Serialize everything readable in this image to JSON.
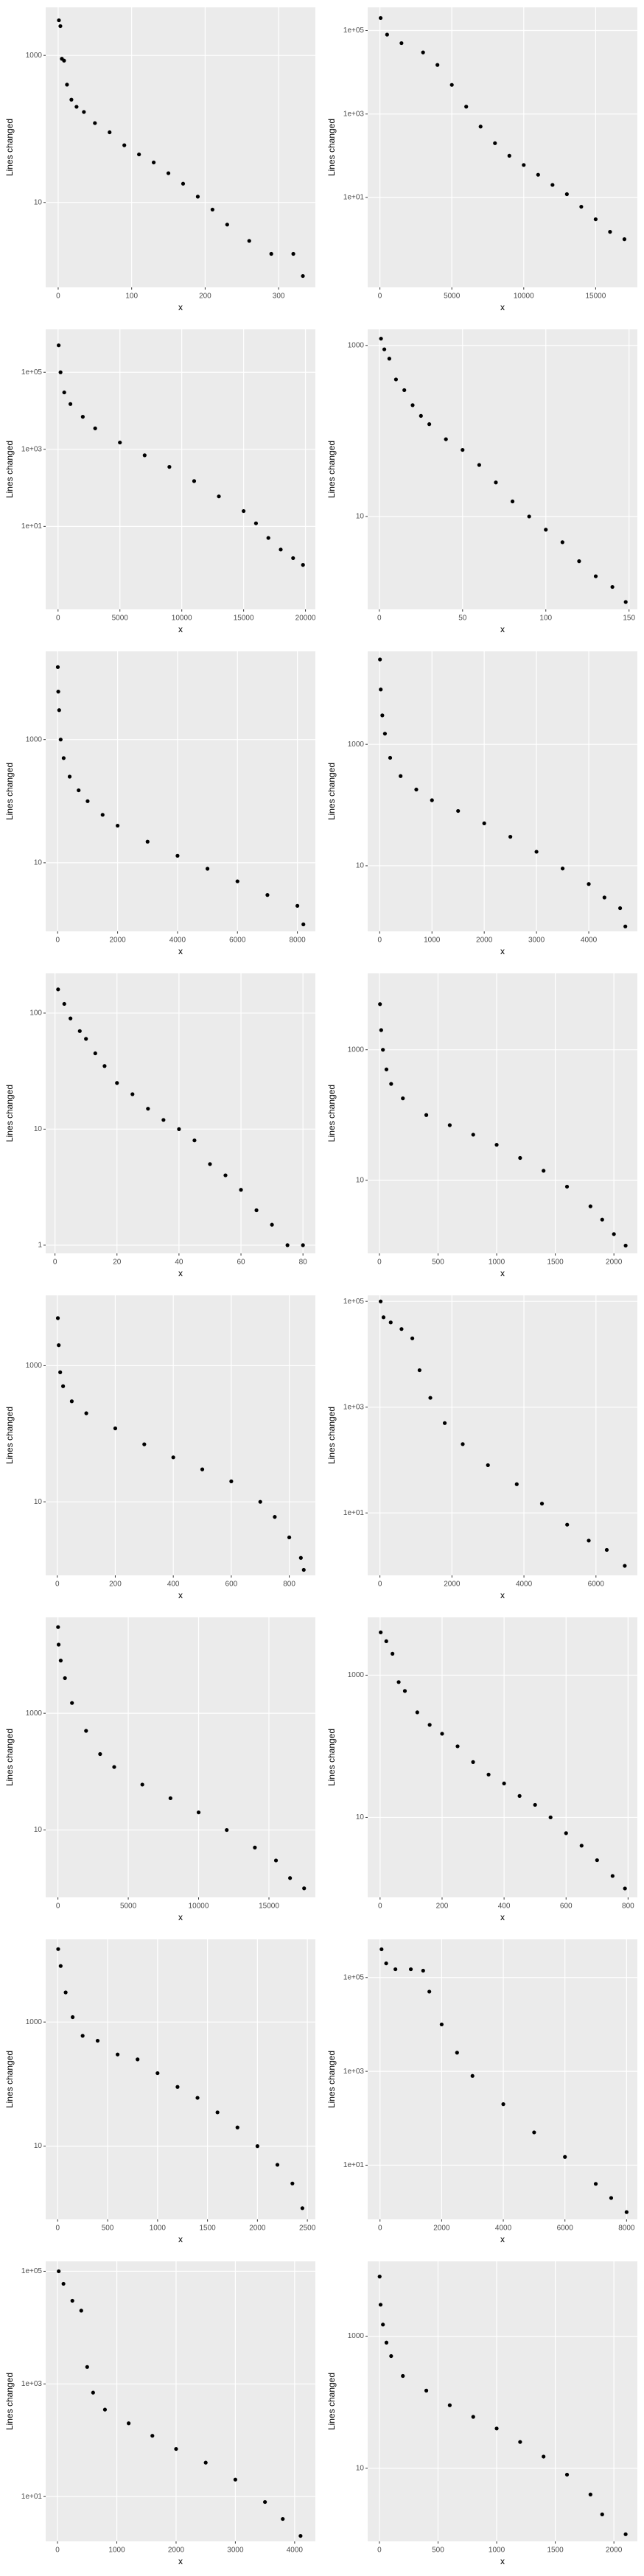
{
  "chart_data": [
    {
      "type": "scatter",
      "xlabel": "x",
      "ylabel": "Lines changed",
      "log_y": true,
      "grid": true,
      "color": "#000000",
      "xlim": [
        -17,
        350
      ],
      "ylim": [
        0.7,
        4500
      ],
      "xticks": [
        0,
        100,
        200,
        300
      ],
      "yticks": [
        10,
        1000
      ],
      "x": [
        1,
        3,
        5,
        8,
        12,
        18,
        25,
        35,
        50,
        70,
        90,
        110,
        130,
        150,
        170,
        190,
        210,
        230,
        260,
        290,
        320,
        333
      ],
      "y": [
        3000,
        2500,
        900,
        850,
        400,
        250,
        200,
        170,
        120,
        90,
        60,
        45,
        35,
        25,
        18,
        12,
        8,
        5,
        3,
        2,
        2,
        1
      ]
    },
    {
      "type": "scatter",
      "xlabel": "x",
      "ylabel": "Lines changed",
      "log_y": true,
      "grid": true,
      "color": "#000000",
      "xlim": [
        -850,
        17900
      ],
      "ylim": [
        0.07,
        360000
      ],
      "xticks": [
        0,
        5000,
        10000,
        15000
      ],
      "yticks": [
        {
          "value": 10,
          "label": "1e+01"
        },
        {
          "value": 1000,
          "label": "1e+03"
        },
        {
          "value": 100000,
          "label": "1e+05"
        }
      ],
      "x": [
        50,
        500,
        1500,
        3000,
        4000,
        5000,
        6000,
        7000,
        8000,
        9000,
        10000,
        11000,
        12000,
        13000,
        14000,
        15000,
        16000,
        17000
      ],
      "y": [
        200000,
        80000,
        50000,
        30000,
        15000,
        5000,
        1500,
        500,
        200,
        100,
        60,
        35,
        20,
        12,
        6,
        3,
        1.5,
        1
      ]
    },
    {
      "type": "scatter",
      "xlabel": "x",
      "ylabel": "Lines changed",
      "log_y": true,
      "grid": true,
      "color": "#000000",
      "xlim": [
        -1000,
        20800
      ],
      "ylim": [
        0.07,
        1300000
      ],
      "xticks": [
        0,
        5000,
        10000,
        15000,
        20000
      ],
      "yticks": [
        {
          "value": 10,
          "label": "1e+01"
        },
        {
          "value": 1000,
          "label": "1e+03"
        },
        {
          "value": 100000,
          "label": "1e+05"
        }
      ],
      "x": [
        50,
        200,
        500,
        1000,
        2000,
        3000,
        5000,
        7000,
        9000,
        11000,
        13000,
        15000,
        16000,
        17000,
        18000,
        19000,
        19800
      ],
      "y": [
        500000,
        100000,
        30000,
        15000,
        7000,
        3500,
        1500,
        700,
        350,
        150,
        60,
        25,
        12,
        5,
        2.5,
        1.5,
        1
      ]
    },
    {
      "type": "scatter",
      "xlabel": "x",
      "ylabel": "Lines changed",
      "log_y": true,
      "grid": true,
      "color": "#000000",
      "xlim": [
        -7,
        155
      ],
      "ylim": [
        0.82,
        1540
      ],
      "xticks": [
        0,
        50,
        100,
        150
      ],
      "yticks": [
        10,
        1000
      ],
      "x": [
        1,
        3,
        6,
        10,
        15,
        20,
        25,
        30,
        40,
        50,
        60,
        70,
        80,
        90,
        100,
        110,
        120,
        130,
        140,
        148
      ],
      "y": [
        1200,
        900,
        700,
        400,
        300,
        200,
        150,
        120,
        80,
        60,
        40,
        25,
        15,
        10,
        7,
        5,
        3,
        2,
        1.5,
        1
      ]
    },
    {
      "type": "scatter",
      "xlabel": "x",
      "ylabel": "Lines changed",
      "log_y": true,
      "grid": true,
      "color": "#000000",
      "xlim": [
        -400,
        8600
      ],
      "ylim": [
        0.77,
        27000
      ],
      "xticks": [
        0,
        2000,
        4000,
        6000,
        8000
      ],
      "yticks": [
        10,
        1000
      ],
      "x": [
        5,
        20,
        50,
        100,
        200,
        400,
        700,
        1000,
        1500,
        2000,
        3000,
        4000,
        5000,
        6000,
        7000,
        8000,
        8200
      ],
      "y": [
        15000,
        6000,
        3000,
        1000,
        500,
        250,
        150,
        100,
        60,
        40,
        22,
        13,
        8,
        5,
        3,
        2,
        1
      ]
    },
    {
      "type": "scatter",
      "xlabel": "x",
      "ylabel": "Lines changed",
      "log_y": true,
      "grid": true,
      "color": "#000000",
      "xlim": [
        -230,
        4930
      ],
      "ylim": [
        0.83,
        34000
      ],
      "xticks": [
        0,
        1000,
        2000,
        3000,
        4000
      ],
      "yticks": [
        10,
        1000
      ],
      "x": [
        5,
        20,
        50,
        100,
        200,
        400,
        700,
        1000,
        1500,
        2000,
        2500,
        3000,
        3500,
        4000,
        4300,
        4600,
        4700
      ],
      "y": [
        25000,
        8000,
        3000,
        1500,
        600,
        300,
        180,
        120,
        80,
        50,
        30,
        17,
        9,
        5,
        3,
        2,
        1
      ]
    },
    {
      "type": "scatter",
      "xlabel": "x",
      "ylabel": "Lines changed",
      "log_y": true,
      "grid": true,
      "color": "#000000",
      "xlim": [
        -3,
        84
      ],
      "ylim": [
        0.85,
        220
      ],
      "xticks": [
        0,
        20,
        40,
        60,
        80
      ],
      "yticks": [
        1,
        10,
        100
      ],
      "x": [
        1,
        3,
        5,
        8,
        10,
        13,
        16,
        20,
        25,
        30,
        35,
        40,
        45,
        50,
        55,
        60,
        65,
        70,
        75,
        80
      ],
      "y": [
        160,
        120,
        90,
        70,
        60,
        45,
        35,
        25,
        20,
        15,
        12,
        10,
        8,
        5,
        4,
        3,
        2,
        1.5,
        1,
        1
      ]
    },
    {
      "type": "scatter",
      "xlabel": "x",
      "ylabel": "Lines changed",
      "log_y": true,
      "grid": true,
      "color": "#000000",
      "xlim": [
        -100,
        2200
      ],
      "ylim": [
        0.76,
        14800
      ],
      "xticks": [
        0,
        500,
        1000,
        1500,
        2000
      ],
      "yticks": [
        10,
        1000
      ],
      "x": [
        5,
        15,
        30,
        60,
        100,
        200,
        400,
        600,
        800,
        1000,
        1200,
        1400,
        1600,
        1800,
        1900,
        2000,
        2100
      ],
      "y": [
        5000,
        2000,
        1000,
        500,
        300,
        180,
        100,
        70,
        50,
        35,
        22,
        14,
        8,
        4,
        2.5,
        1.5,
        1
      ]
    },
    {
      "type": "scatter",
      "xlabel": "x",
      "ylabel": "Lines changed",
      "log_y": true,
      "grid": true,
      "color": "#000000",
      "xlim": [
        -40,
        890
      ],
      "ylim": [
        0.83,
        10800
      ],
      "xticks": [
        0,
        200,
        400,
        600,
        800
      ],
      "yticks": [
        10,
        1000
      ],
      "x": [
        2,
        5,
        10,
        20,
        50,
        100,
        200,
        300,
        400,
        500,
        600,
        700,
        750,
        800,
        840,
        850
      ],
      "y": [
        5000,
        2000,
        800,
        500,
        300,
        200,
        120,
        70,
        45,
        30,
        20,
        10,
        6,
        3,
        1.5,
        1
      ]
    },
    {
      "type": "scatter",
      "xlabel": "x",
      "ylabel": "Lines changed",
      "log_y": true,
      "grid": true,
      "color": "#000000",
      "xlim": [
        -340,
        7150
      ],
      "ylim": [
        0.66,
        130000
      ],
      "xticks": [
        0,
        2000,
        4000,
        6000
      ],
      "yticks": [
        {
          "value": 10,
          "label": "1e+01"
        },
        {
          "value": 1000,
          "label": "1e+03"
        },
        {
          "value": 100000,
          "label": "1e+05"
        }
      ],
      "x": [
        20,
        100,
        300,
        600,
        900,
        1100,
        1400,
        1800,
        2300,
        3000,
        3800,
        4500,
        5200,
        5800,
        6300,
        6800
      ],
      "y": [
        100000,
        50000,
        40000,
        30000,
        20000,
        5000,
        1500,
        500,
        200,
        80,
        35,
        15,
        6,
        3,
        2,
        1
      ]
    },
    {
      "type": "scatter",
      "xlabel": "x",
      "ylabel": "Lines changed",
      "log_y": true,
      "grid": true,
      "color": "#000000",
      "xlim": [
        -870,
        18300
      ],
      "ylim": [
        0.7,
        44000
      ],
      "xticks": [
        0,
        5000,
        10000,
        15000
      ],
      "yticks": [
        10,
        1000
      ],
      "x": [
        10,
        50,
        200,
        500,
        1000,
        2000,
        3000,
        4000,
        6000,
        8000,
        10000,
        12000,
        14000,
        15500,
        16500,
        17500
      ],
      "y": [
        30000,
        15000,
        8000,
        4000,
        1500,
        500,
        200,
        120,
        60,
        35,
        20,
        10,
        5,
        3,
        1.5,
        1
      ]
    },
    {
      "type": "scatter",
      "xlabel": "x",
      "ylabel": "Lines changed",
      "log_y": true,
      "grid": true,
      "color": "#000000",
      "xlim": [
        -40,
        830
      ],
      "ylim": [
        0.75,
        6500
      ],
      "xticks": [
        0,
        200,
        400,
        600,
        800
      ],
      "yticks": [
        10,
        1000
      ],
      "x": [
        2,
        20,
        40,
        60,
        80,
        120,
        160,
        200,
        250,
        300,
        350,
        400,
        450,
        500,
        550,
        600,
        650,
        700,
        750,
        790
      ],
      "y": [
        4000,
        3000,
        2000,
        800,
        600,
        300,
        200,
        150,
        100,
        60,
        40,
        30,
        20,
        15,
        10,
        6,
        4,
        2.5,
        1.5,
        1
      ]
    },
    {
      "type": "scatter",
      "xlabel": "x",
      "ylabel": "Lines changed",
      "log_y": true,
      "grid": true,
      "color": "#000000",
      "xlim": [
        -120,
        2580
      ],
      "ylim": [
        0.66,
        21500
      ],
      "xticks": [
        0,
        500,
        1000,
        1500,
        2000,
        2500
      ],
      "yticks": [
        10,
        1000
      ],
      "x": [
        5,
        30,
        80,
        150,
        250,
        400,
        600,
        800,
        1000,
        1200,
        1400,
        1600,
        1800,
        2000,
        2200,
        2350,
        2450
      ],
      "y": [
        15000,
        8000,
        3000,
        1200,
        600,
        500,
        300,
        250,
        150,
        90,
        60,
        35,
        20,
        10,
        5,
        2.5,
        1
      ]
    },
    {
      "type": "scatter",
      "xlabel": "x",
      "ylabel": "Lines changed",
      "log_y": true,
      "grid": true,
      "color": "#000000",
      "xlim": [
        -400,
        8350
      ],
      "ylim": [
        0.7,
        650000
      ],
      "xticks": [
        0,
        2000,
        4000,
        6000,
        8000
      ],
      "yticks": [
        {
          "value": 10,
          "label": "1e+01"
        },
        {
          "value": 1000,
          "label": "1e+03"
        },
        {
          "value": 100000,
          "label": "1e+05"
        }
      ],
      "x": [
        50,
        200,
        500,
        1000,
        1400,
        1600,
        2000,
        2500,
        3000,
        4000,
        5000,
        6000,
        7000,
        7500,
        8000
      ],
      "y": [
        400000,
        200000,
        150000,
        150000,
        140000,
        50000,
        10000,
        2500,
        800,
        200,
        50,
        15,
        4,
        2,
        1
      ]
    },
    {
      "type": "scatter",
      "xlabel": "x",
      "ylabel": "Lines changed",
      "log_y": true,
      "grid": true,
      "color": "#000000",
      "xlim": [
        -200,
        4350
      ],
      "ylim": [
        1.6,
        150000
      ],
      "xticks": [
        0,
        1000,
        2000,
        3000,
        4000
      ],
      "yticks": [
        {
          "value": 10,
          "label": "1e+01"
        },
        {
          "value": 1000,
          "label": "1e+03"
        },
        {
          "value": 100000,
          "label": "1e+05"
        }
      ],
      "x": [
        20,
        100,
        250,
        400,
        500,
        600,
        800,
        1200,
        1600,
        2000,
        2500,
        3000,
        3500,
        3800,
        4100
      ],
      "y": [
        100000,
        60000,
        30000,
        20000,
        2000,
        700,
        350,
        200,
        120,
        70,
        40,
        20,
        8,
        4,
        2
      ]
    },
    {
      "type": "scatter",
      "xlabel": "x",
      "ylabel": "Lines changed",
      "log_y": true,
      "grid": true,
      "color": "#000000",
      "xlim": [
        -100,
        2200
      ],
      "ylim": [
        0.78,
        13600
      ],
      "xticks": [
        0,
        500,
        1000,
        1500,
        2000
      ],
      "yticks": [
        10,
        1000
      ],
      "x": [
        2,
        10,
        30,
        60,
        100,
        200,
        400,
        600,
        800,
        1000,
        1200,
        1400,
        1600,
        1800,
        1900,
        2100
      ],
      "y": [
        8000,
        3000,
        1500,
        800,
        500,
        250,
        150,
        90,
        60,
        40,
        25,
        15,
        8,
        4,
        2,
        1
      ]
    }
  ]
}
